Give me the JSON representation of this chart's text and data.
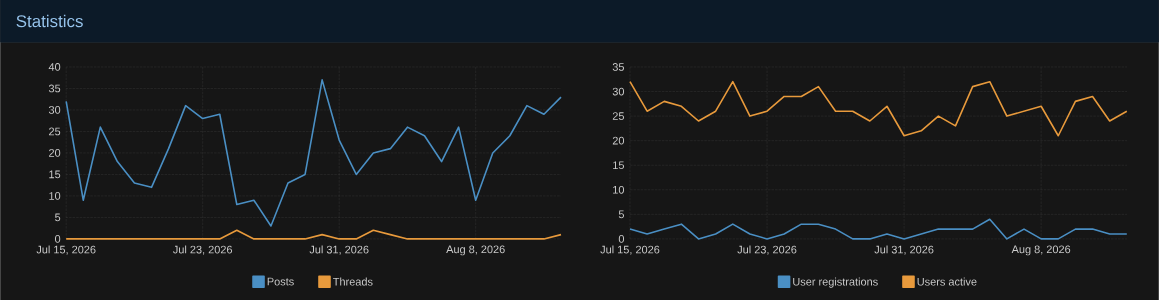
{
  "chart_data": [
    {
      "type": "line",
      "title": "Statistics",
      "x": [
        "2026-07-15",
        "2026-07-16",
        "2026-07-17",
        "2026-07-18",
        "2026-07-19",
        "2026-07-20",
        "2026-07-21",
        "2026-07-22",
        "2026-07-23",
        "2026-07-24",
        "2026-07-25",
        "2026-07-26",
        "2026-07-27",
        "2026-07-28",
        "2026-07-29",
        "2026-07-30",
        "2026-07-31",
        "2026-08-01",
        "2026-08-02",
        "2026-08-03",
        "2026-08-04",
        "2026-08-05",
        "2026-08-06",
        "2026-08-07",
        "2026-08-08",
        "2026-08-09",
        "2026-08-10",
        "2026-08-11",
        "2026-08-12",
        "2026-08-13"
      ],
      "series": [
        {
          "name": "Posts",
          "color": "#4a8fc4",
          "values": [
            32,
            9,
            26,
            18,
            13,
            12,
            21,
            31,
            28,
            29,
            8,
            9,
            3,
            13,
            15,
            37,
            23,
            15,
            20,
            21,
            26,
            24,
            18,
            26,
            9,
            20,
            24,
            31,
            29,
            33
          ]
        },
        {
          "name": "Threads",
          "color": "#e89a3c",
          "values": [
            0,
            0,
            0,
            0,
            0,
            0,
            0,
            0,
            0,
            0,
            2,
            0,
            0,
            0,
            0,
            1,
            0,
            0,
            2,
            1,
            0,
            0,
            0,
            0,
            0,
            0,
            0,
            0,
            0,
            1
          ]
        }
      ],
      "xlim": [
        "2026-07-15",
        "2026-08-13"
      ],
      "xticks": [
        {
          "value": "2026-07-15",
          "label": "Jul 15, 2026"
        },
        {
          "value": "2026-07-23",
          "label": "Jul 23, 2026"
        },
        {
          "value": "2026-07-31",
          "label": "Jul 31, 2026"
        },
        {
          "value": "2026-08-08",
          "label": "Aug 8, 2026"
        }
      ],
      "ylim": [
        0,
        40
      ],
      "yticks": [
        0,
        5,
        10,
        15,
        20,
        25,
        30,
        35,
        40
      ],
      "grid": true,
      "legend": "bottom"
    },
    {
      "type": "line",
      "x": [
        "2026-07-15",
        "2026-07-16",
        "2026-07-17",
        "2026-07-18",
        "2026-07-19",
        "2026-07-20",
        "2026-07-21",
        "2026-07-22",
        "2026-07-23",
        "2026-07-24",
        "2026-07-25",
        "2026-07-26",
        "2026-07-27",
        "2026-07-28",
        "2026-07-29",
        "2026-07-30",
        "2026-07-31",
        "2026-08-01",
        "2026-08-02",
        "2026-08-03",
        "2026-08-04",
        "2026-08-05",
        "2026-08-06",
        "2026-08-07",
        "2026-08-08",
        "2026-08-09",
        "2026-08-10",
        "2026-08-11",
        "2026-08-12",
        "2026-08-13"
      ],
      "series": [
        {
          "name": "User registrations",
          "color": "#4a8fc4",
          "values": [
            2,
            1,
            2,
            3,
            0,
            1,
            3,
            1,
            0,
            1,
            3,
            3,
            2,
            0,
            0,
            1,
            0,
            1,
            2,
            2,
            2,
            4,
            0,
            2,
            0,
            0,
            2,
            2,
            1,
            1
          ]
        },
        {
          "name": "Users active",
          "color": "#e89a3c",
          "values": [
            32,
            26,
            28,
            27,
            24,
            26,
            32,
            25,
            26,
            29,
            29,
            31,
            26,
            26,
            24,
            27,
            21,
            22,
            25,
            23,
            31,
            32,
            25,
            26,
            27,
            21,
            28,
            29,
            24,
            26
          ]
        }
      ],
      "xlim": [
        "2026-07-15",
        "2026-08-13"
      ],
      "xticks": [
        {
          "value": "2026-07-15",
          "label": "Jul 15, 2026"
        },
        {
          "value": "2026-07-23",
          "label": "Jul 23, 2026"
        },
        {
          "value": "2026-07-31",
          "label": "Jul 31, 2026"
        },
        {
          "value": "2026-08-08",
          "label": "Aug 8, 2026"
        }
      ],
      "ylim": [
        0,
        35
      ],
      "yticks": [
        0,
        5,
        10,
        15,
        20,
        25,
        30,
        35
      ],
      "grid": true,
      "legend": "bottom"
    }
  ]
}
